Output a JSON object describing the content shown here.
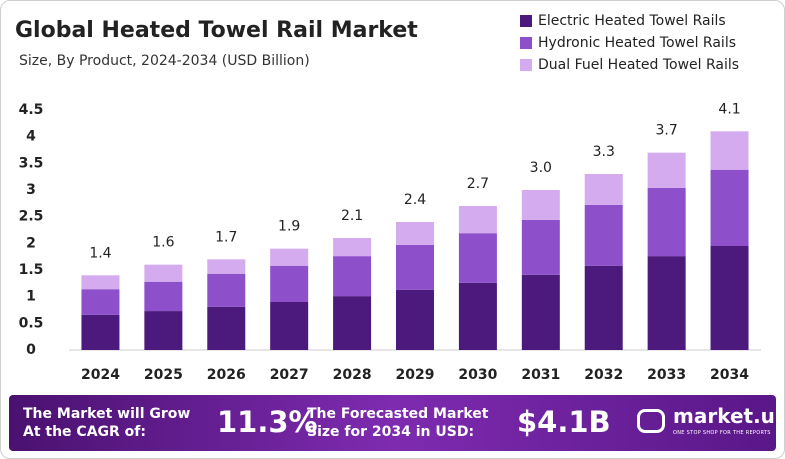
{
  "chart_data": {
    "type": "stacked_bar",
    "title": "Global Heated Towel Rail Market",
    "subtitle": "Size, By Product, 2024-2034 (USD Billion)",
    "categories": [
      "2024",
      "2025",
      "2026",
      "2027",
      "2028",
      "2029",
      "2030",
      "2031",
      "2032",
      "2033",
      "2034"
    ],
    "series": [
      {
        "name": "Electric Heated Towel Rails",
        "color": "#4b1a7c",
        "values": [
          0.66,
          0.73,
          0.81,
          0.9,
          1.01,
          1.13,
          1.26,
          1.41,
          1.58,
          1.76,
          1.95
        ]
      },
      {
        "name": "Hydronic Heated Towel Rails",
        "color": "#8d4fca",
        "values": [
          0.48,
          0.55,
          0.62,
          0.68,
          0.75,
          0.84,
          0.93,
          1.03,
          1.14,
          1.28,
          1.43
        ]
      },
      {
        "name": "Dual Fuel Heated Towel Rails",
        "color": "#d4abee",
        "values": [
          0.26,
          0.32,
          0.27,
          0.32,
          0.34,
          0.43,
          0.51,
          0.56,
          0.58,
          0.66,
          0.72
        ]
      }
    ],
    "totals": [
      {
        "value": 1.4,
        "label": "1.4"
      },
      {
        "value": 1.6,
        "label": "1.6"
      },
      {
        "value": 1.7,
        "label": "1.7"
      },
      {
        "value": 1.9,
        "label": "1.9"
      },
      {
        "value": 2.1,
        "label": "2.1"
      },
      {
        "value": 2.4,
        "label": "2.4"
      },
      {
        "value": 2.7,
        "label": "2.7"
      },
      {
        "value": 3.0,
        "label": "3.0"
      },
      {
        "value": 3.3,
        "label": "3.3"
      },
      {
        "value": 3.7,
        "label": "3.7"
      },
      {
        "value": 4.1,
        "label": "4.1"
      }
    ],
    "ylim": [
      0,
      4.5
    ],
    "yticks": [
      0,
      0.5,
      1,
      1.5,
      2,
      2.5,
      3,
      3.5,
      4,
      4.5
    ],
    "grid": false,
    "legend": "top-right"
  },
  "footer": {
    "cagr_text": "The Market will Grow At the CAGR of:",
    "cagr_value": "11.3%",
    "forecast_text": "The Forecasted Market Size for 2034 in USD:",
    "forecast_value": "$4.1B",
    "brand": "market.us",
    "tagline": "ONE STOP SHOP FOR THE REPORTS"
  }
}
